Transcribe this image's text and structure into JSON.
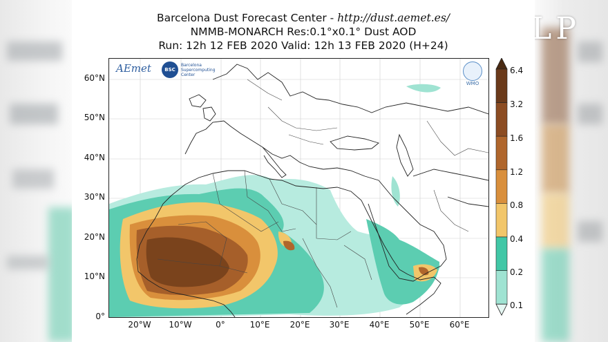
{
  "title": {
    "line1_prefix": "Barcelona Dust Forecast Center - ",
    "line1_url": "http://dust.aemet.es/",
    "line2": "NMMB-MONARCH   Res:0.1°x0.1°   Dust AOD",
    "line3": "Run: 12h 12 FEB 2020   Valid: 12h 13 FEB 2020 (H+24)"
  },
  "logos": {
    "aemet": "AEmet",
    "bsc": "BSC",
    "bsc_text": "Barcelona Supercomputing Center",
    "wmo": "WMO",
    "watermark": "LP"
  },
  "map": {
    "lat_ticks": [
      "60°N",
      "50°N",
      "40°N",
      "30°N",
      "20°N",
      "10°N",
      "0°"
    ],
    "lon_ticks": [
      "20°W",
      "10°W",
      "0°",
      "10°E",
      "20°E",
      "30°E",
      "40°E",
      "50°E",
      "60°E"
    ]
  },
  "colorbar": {
    "levels": [
      "6.4",
      "3.2",
      "1.6",
      "1.2",
      "0.8",
      "0.4",
      "0.2",
      "0.1"
    ],
    "colors": [
      "#4a2a12",
      "#6b3a1a",
      "#8c4c22",
      "#b0662c",
      "#d98f3c",
      "#f2c66a",
      "#41c7a6",
      "#9fe3d2",
      "#e6f7f3"
    ]
  }
}
